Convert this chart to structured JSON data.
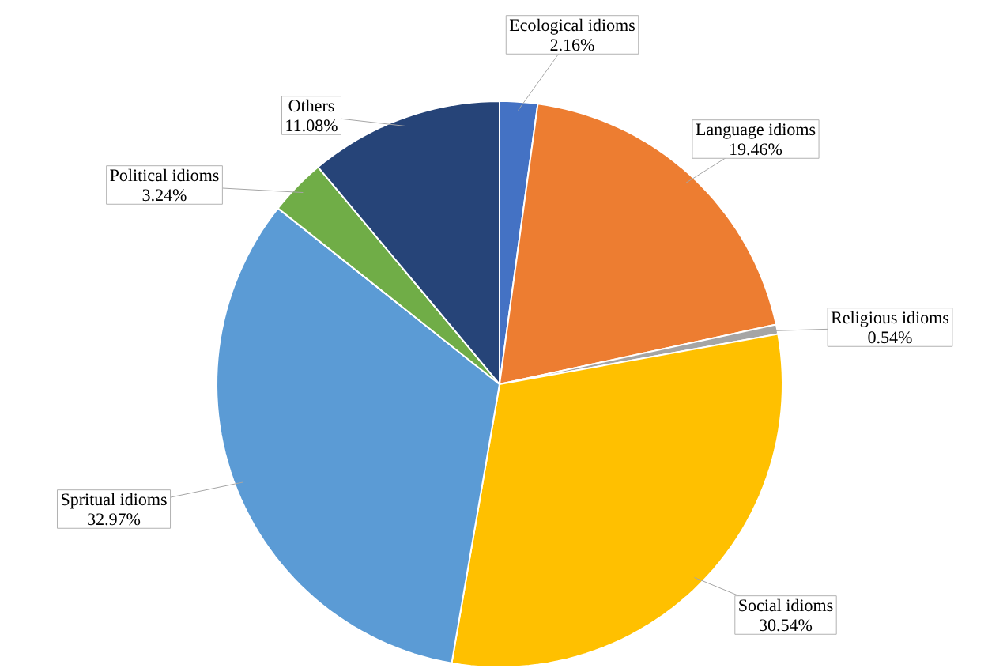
{
  "chart_data": {
    "type": "pie",
    "categories": [
      "Ecological idioms",
      "Language idioms",
      "Religious idioms",
      "Social idioms",
      "Spritual idioms",
      "Political idioms",
      "Others"
    ],
    "values": [
      2.16,
      19.46,
      0.54,
      30.54,
      32.97,
      3.24,
      11.08
    ],
    "value_labels": [
      "2.16%",
      "19.46%",
      "0.54%",
      "30.54%",
      "32.97%",
      "3.24%",
      "11.08%"
    ],
    "colors": [
      "#4472c4",
      "#ed7d31",
      "#a5a5a5",
      "#ffc000",
      "#5b9bd5",
      "#70ad47",
      "#264478"
    ]
  }
}
